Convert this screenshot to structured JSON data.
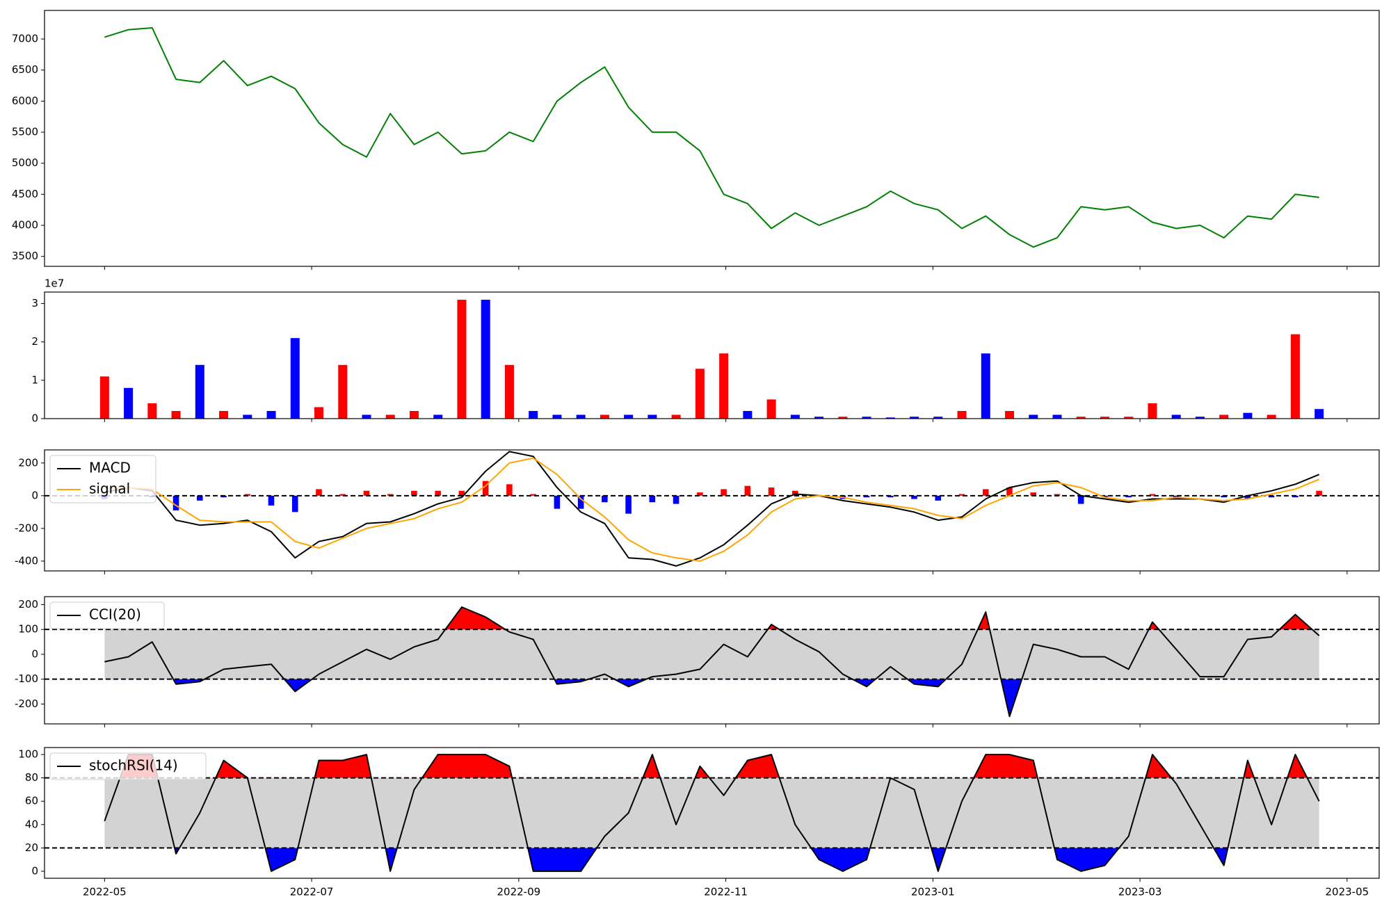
{
  "chart_data": [
    {
      "type": "line",
      "x": [
        0,
        0.23,
        0.46,
        0.69,
        0.92,
        1.15,
        1.38,
        1.61,
        1.84,
        2.07,
        2.3,
        2.53,
        2.76,
        2.99,
        3.22,
        3.45,
        3.68,
        3.91,
        4.14,
        4.37,
        4.6,
        4.83,
        5.06,
        5.29,
        5.52,
        5.75,
        5.98,
        6.21,
        6.44,
        6.67,
        6.9,
        7.13,
        7.36,
        7.59,
        7.82,
        8.05,
        8.28,
        8.51,
        8.74,
        8.97,
        9.2,
        9.43,
        9.66,
        9.89,
        10.12,
        10.35,
        10.58,
        10.81,
        11.04,
        11.27,
        11.5,
        11.73
      ],
      "values": [
        7030,
        7150,
        7180,
        6350,
        6300,
        6650,
        6250,
        6400,
        6200,
        5650,
        5300,
        5100,
        5800,
        5300,
        5500,
        5150,
        5200,
        5500,
        5350,
        6000,
        6300,
        6550,
        5900,
        5500,
        5500,
        5200,
        4500,
        4350,
        3950,
        4200,
        4000,
        4150,
        4300,
        4550,
        4350,
        4250,
        3950,
        4150,
        3850,
        3650,
        3800,
        4300,
        4250,
        4300,
        4050,
        3950,
        4000,
        3800,
        4150,
        4100,
        4500,
        4450
      ],
      "color": "#008000",
      "xlim": [
        -0.58,
        12.31
      ],
      "ylim": [
        3340,
        7460
      ],
      "yticks": [
        3500,
        4000,
        4500,
        5000,
        5500,
        6000,
        6500,
        7000
      ]
    },
    {
      "type": "bar",
      "x": [
        0,
        0.23,
        0.46,
        0.69,
        0.92,
        1.15,
        1.38,
        1.61,
        1.84,
        2.07,
        2.3,
        2.53,
        2.76,
        2.99,
        3.22,
        3.45,
        3.68,
        3.91,
        4.14,
        4.37,
        4.6,
        4.83,
        5.06,
        5.29,
        5.52,
        5.75,
        5.98,
        6.21,
        6.44,
        6.67,
        6.9,
        7.13,
        7.36,
        7.59,
        7.82,
        8.05,
        8.28,
        8.51,
        8.74,
        8.97,
        9.2,
        9.43,
        9.66,
        9.89,
        10.12,
        10.35,
        10.58,
        10.81,
        11.04,
        11.27,
        11.5,
        11.73
      ],
      "values": [
        11000000,
        8000000,
        4000000,
        2000000,
        14000000,
        2000000,
        1000000,
        2000000,
        21000000,
        3000000,
        14000000,
        1000000,
        1000000,
        2000000,
        1000000,
        31000000,
        31000000,
        14000000,
        2000000,
        1000000,
        1000000,
        1000000,
        1000000,
        1000000,
        1000000,
        13000000,
        17000000,
        2000000,
        5000000,
        1000000,
        500000,
        500000,
        500000,
        300000,
        500000,
        500000,
        2000000,
        17000000,
        2000000,
        1000000,
        1000000,
        500000,
        500000,
        500000,
        4000000,
        1000000,
        500000,
        1000000,
        1500000,
        1000000,
        22000000,
        2500000
      ],
      "colors": [
        "#ff0000",
        "#0000ff",
        "#ff0000",
        "#ff0000",
        "#0000ff",
        "#ff0000",
        "#0000ff",
        "#0000ff",
        "#0000ff",
        "#ff0000",
        "#ff0000",
        "#0000ff",
        "#ff0000",
        "#ff0000",
        "#0000ff",
        "#ff0000",
        "#0000ff",
        "#ff0000",
        "#0000ff",
        "#0000ff",
        "#0000ff",
        "#ff0000",
        "#0000ff",
        "#0000ff",
        "#ff0000",
        "#ff0000",
        "#ff0000",
        "#0000ff",
        "#ff0000",
        "#0000ff",
        "#0000ff",
        "#ff0000",
        "#0000ff",
        "#0000ff",
        "#0000ff",
        "#0000ff",
        "#ff0000",
        "#0000ff",
        "#ff0000",
        "#0000ff",
        "#0000ff",
        "#ff0000",
        "#ff0000",
        "#ff0000",
        "#ff0000",
        "#0000ff",
        "#0000ff",
        "#ff0000",
        "#0000ff",
        "#ff0000",
        "#ff0000",
        "#0000ff"
      ],
      "offset_label": "1e7",
      "xlim": [
        -0.58,
        12.31
      ],
      "ylim": [
        0,
        33000000
      ],
      "yticks": [
        0,
        {
          "value": 10000000,
          "label": "1"
        },
        {
          "value": 20000000,
          "label": "2"
        },
        {
          "value": 30000000,
          "label": "3"
        }
      ]
    },
    {
      "type": "combo",
      "x": [
        0,
        0.23,
        0.46,
        0.69,
        0.92,
        1.15,
        1.38,
        1.61,
        1.84,
        2.07,
        2.3,
        2.53,
        2.76,
        2.99,
        3.22,
        3.45,
        3.68,
        3.91,
        4.14,
        4.37,
        4.6,
        4.83,
        5.06,
        5.29,
        5.52,
        5.75,
        5.98,
        6.21,
        6.44,
        6.67,
        6.9,
        7.13,
        7.36,
        7.59,
        7.82,
        8.05,
        8.28,
        8.51,
        8.74,
        8.97,
        9.2,
        9.43,
        9.66,
        9.89,
        10.12,
        10.35,
        10.58,
        10.81,
        11.04,
        11.27,
        11.5,
        11.73
      ],
      "series": [
        {
          "name": "MACD",
          "color": "#000000",
          "values": [
            20,
            50,
            30,
            -150,
            -180,
            -170,
            -150,
            -220,
            -380,
            -280,
            -250,
            -170,
            -160,
            -110,
            -50,
            -10,
            150,
            270,
            240,
            50,
            -100,
            -170,
            -380,
            -390,
            -430,
            -380,
            -300,
            -180,
            -50,
            10,
            0,
            -30,
            -50,
            -70,
            -100,
            -150,
            -130,
            -20,
            50,
            80,
            90,
            0,
            -20,
            -40,
            -20,
            -20,
            -20,
            -40,
            0,
            30,
            70,
            130
          ]
        },
        {
          "name": "signal",
          "color": "#ffa500",
          "values": [
            40,
            50,
            40,
            -60,
            -150,
            -160,
            -160,
            -160,
            -280,
            -320,
            -260,
            -200,
            -170,
            -140,
            -80,
            -40,
            60,
            200,
            230,
            130,
            -20,
            -130,
            -270,
            -350,
            -380,
            -400,
            -340,
            -240,
            -100,
            -20,
            0,
            -10,
            -40,
            -60,
            -80,
            -120,
            -140,
            -60,
            0,
            60,
            80,
            50,
            -10,
            -30,
            -30,
            -10,
            -20,
            -30,
            -20,
            10,
            40,
            100
          ]
        }
      ],
      "histogram": {
        "values": [
          -20,
          0,
          -10,
          -90,
          -30,
          -10,
          10,
          -60,
          -100,
          40,
          10,
          30,
          10,
          30,
          30,
          30,
          90,
          70,
          10,
          -80,
          -80,
          -40,
          -110,
          -40,
          -50,
          20,
          40,
          60,
          50,
          30,
          0,
          -20,
          -10,
          -10,
          -20,
          -30,
          10,
          40,
          50,
          20,
          10,
          -50,
          -10,
          -10,
          10,
          -10,
          0,
          -10,
          -20,
          -10,
          -10,
          30
        ],
        "pos_color": "#ff0000",
        "neg_color": "#0000ff"
      },
      "hlines": [
        0
      ],
      "xlim": [
        -0.58,
        12.31
      ],
      "ylim": [
        -460,
        280
      ],
      "yticks": [
        -400,
        -200,
        0,
        200
      ]
    },
    {
      "type": "band",
      "x": [
        0,
        0.23,
        0.46,
        0.69,
        0.92,
        1.15,
        1.38,
        1.61,
        1.84,
        2.07,
        2.3,
        2.53,
        2.76,
        2.99,
        3.22,
        3.45,
        3.68,
        3.91,
        4.14,
        4.37,
        4.6,
        4.83,
        5.06,
        5.29,
        5.52,
        5.75,
        5.98,
        6.21,
        6.44,
        6.67,
        6.9,
        7.13,
        7.36,
        7.59,
        7.82,
        8.05,
        8.28,
        8.51,
        8.74,
        8.97,
        9.2,
        9.43,
        9.66,
        9.89,
        10.12,
        10.35,
        10.58,
        10.81,
        11.04,
        11.27,
        11.5,
        11.73
      ],
      "series": [
        {
          "name": "CCI(20)",
          "color": "#000000",
          "values": [
            -30,
            -10,
            50,
            -120,
            -110,
            -60,
            -50,
            -40,
            -150,
            -80,
            -30,
            20,
            -20,
            30,
            60,
            190,
            150,
            90,
            60,
            -120,
            -110,
            -80,
            -130,
            -90,
            -80,
            -60,
            40,
            -10,
            120,
            60,
            10,
            -80,
            -130,
            -50,
            -120,
            -130,
            -40,
            170,
            -250,
            40,
            20,
            -10,
            -10,
            -60,
            130,
            20,
            -90,
            -90,
            60,
            70,
            160,
            75
          ]
        }
      ],
      "thresholds": [
        100,
        -100
      ],
      "upper_color": "#ff0000",
      "lower_color": "#0000ff",
      "band_color": "#d3d3d3",
      "xlim": [
        -0.58,
        12.31
      ],
      "ylim": [
        -280,
        232
      ],
      "yticks": [
        -200,
        -100,
        0,
        100,
        200
      ]
    },
    {
      "type": "band",
      "x": [
        0,
        0.23,
        0.46,
        0.69,
        0.92,
        1.15,
        1.38,
        1.61,
        1.84,
        2.07,
        2.3,
        2.53,
        2.76,
        2.99,
        3.22,
        3.45,
        3.68,
        3.91,
        4.14,
        4.37,
        4.6,
        4.83,
        5.06,
        5.29,
        5.52,
        5.75,
        5.98,
        6.21,
        6.44,
        6.67,
        6.9,
        7.13,
        7.36,
        7.59,
        7.82,
        8.05,
        8.28,
        8.51,
        8.74,
        8.97,
        9.2,
        9.43,
        9.66,
        9.89,
        10.12,
        10.35,
        10.58,
        10.81,
        11.04,
        11.27,
        11.5,
        11.73
      ],
      "series": [
        {
          "name": "stochRSI(14)",
          "color": "#000000",
          "values": [
            43,
            100,
            100,
            15,
            50,
            95,
            80,
            0,
            10,
            95,
            95,
            100,
            0,
            70,
            100,
            100,
            100,
            90,
            0,
            0,
            0,
            30,
            50,
            100,
            40,
            90,
            65,
            95,
            100,
            40,
            10,
            0,
            10,
            80,
            70,
            0,
            60,
            100,
            100,
            95,
            10,
            0,
            5,
            30,
            100,
            75,
            40,
            5,
            95,
            40,
            100,
            60
          ]
        }
      ],
      "thresholds": [
        80,
        20
      ],
      "upper_color": "#ff0000",
      "lower_color": "#0000ff",
      "band_color": "#d3d3d3",
      "xlim": [
        -0.58,
        12.31
      ],
      "ylim": [
        -6,
        106
      ],
      "yticks": [
        0,
        20,
        40,
        60,
        80,
        100
      ],
      "xticks": [
        {
          "value": 0,
          "label": "2022-05"
        },
        {
          "value": 2,
          "label": "2022-07"
        },
        {
          "value": 4,
          "label": "2022-09"
        },
        {
          "value": 6,
          "label": "2022-11"
        },
        {
          "value": 8,
          "label": "2023-01"
        },
        {
          "value": 10,
          "label": "2023-03"
        },
        {
          "value": 12,
          "label": "2023-05"
        }
      ]
    }
  ]
}
